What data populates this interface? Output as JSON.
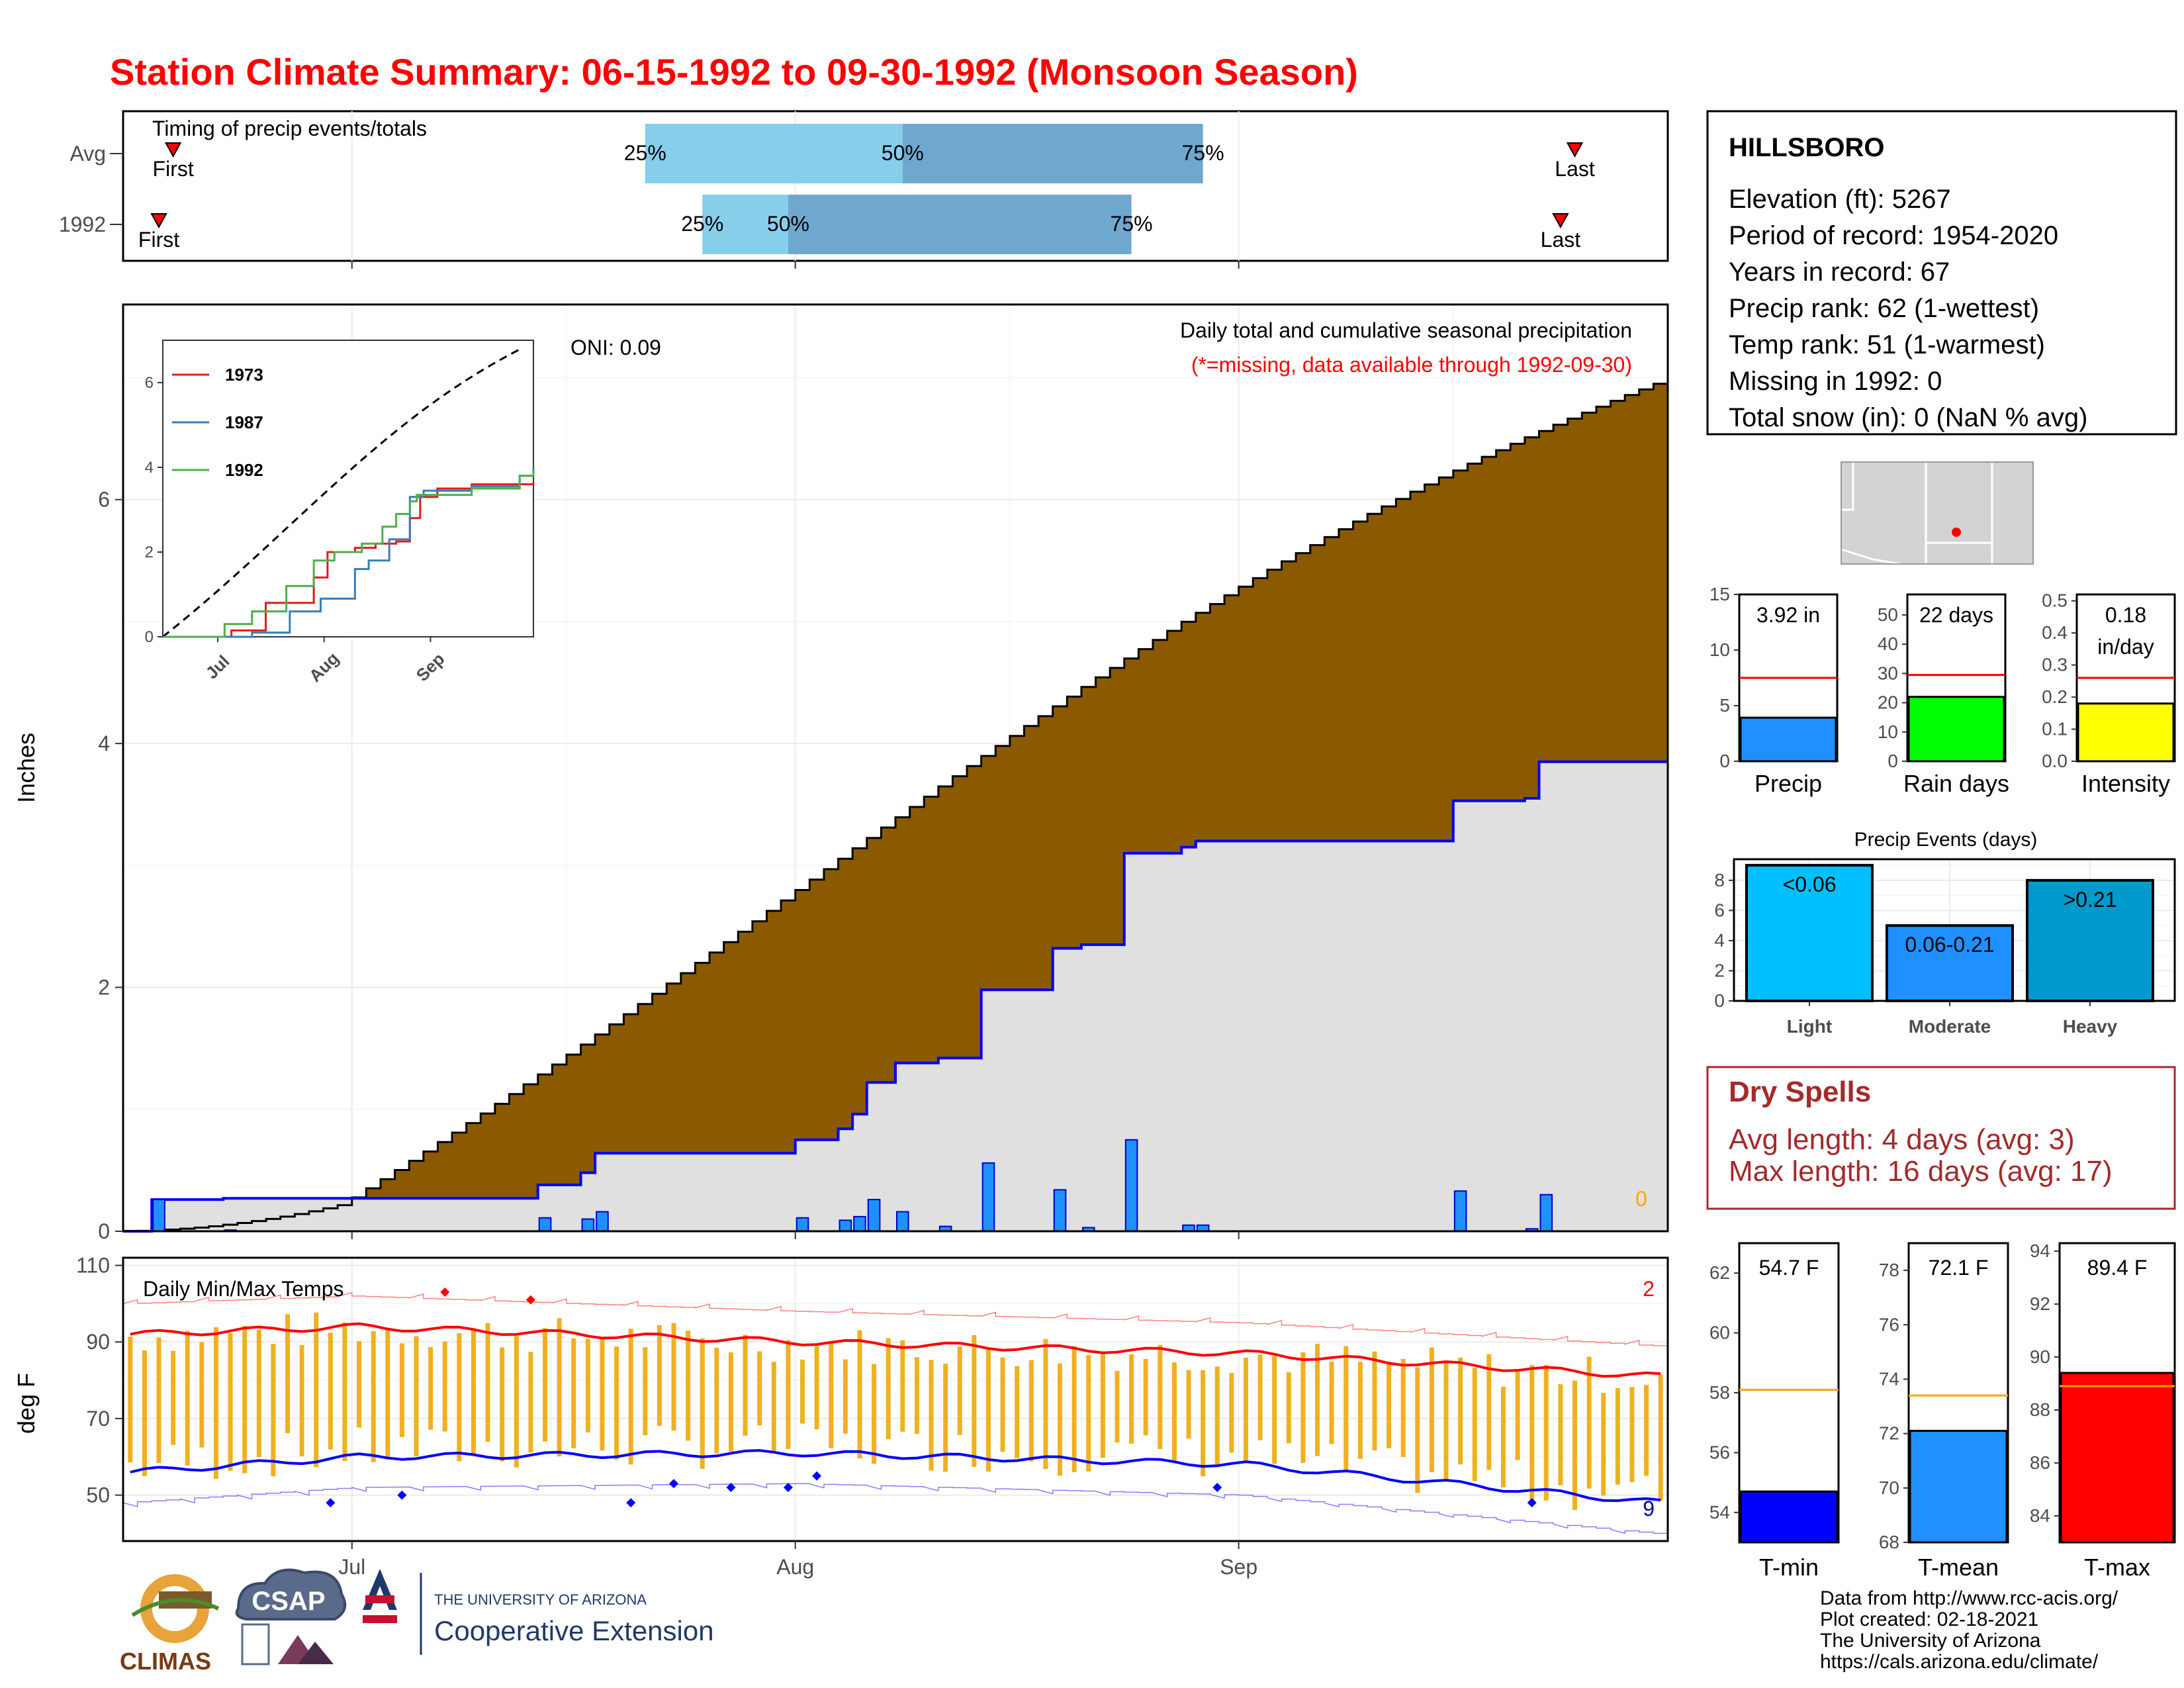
{
  "title": "Station Climate Summary: 06-15-1992 to 09-30-1992 (Monsoon Season)",
  "timing": {
    "label": "Timing of precip events/totals",
    "rows": [
      {
        "name": "Avg",
        "first": "First",
        "last": "Last",
        "p25": "25%",
        "p50": "50%",
        "p75": "75%",
        "first_day": "06-18",
        "p25_day": "07-21",
        "p50_day": "08-08",
        "p75_day": "08-29",
        "last_day": "09-24"
      },
      {
        "name": "1992",
        "first": "First",
        "last": "Last",
        "p25": "25%",
        "p50": "50%",
        "p75": "75%",
        "first_day": "06-17",
        "p25_day": "07-25",
        "p50_day": "07-31",
        "p75_day": "08-24",
        "last_day": "09-23"
      }
    ],
    "colors": {
      "lower": "#87ceeb",
      "upper": "#6fa8cf",
      "marker": "#ff0000"
    }
  },
  "precip_panel": {
    "ylabel": "Inches",
    "oni": "ONI: 0.09",
    "caption": "Daily total and cumulative seasonal precipitation",
    "missing_note": "(*=missing, data available through 1992-09-30)",
    "missing_count": "0",
    "colors": {
      "avg_fill": "#8b5a00",
      "obs_fill": "#e0e0e0",
      "obs_line": "#0000ff",
      "daily_bar": "#1e90ff"
    }
  },
  "temp_panel": {
    "ylabel": "deg F",
    "label": "Daily Min/Max Temps",
    "count_top": "2",
    "count_bottom": "9",
    "colors": {
      "bar": "#f0b020",
      "max_avg": "#ff0000",
      "min_avg": "#0000ff"
    }
  },
  "inset": {
    "series": [
      {
        "name": "1973",
        "color": "#e41a1c"
      },
      {
        "name": "1987",
        "color": "#377eb8"
      },
      {
        "name": "1992",
        "color": "#4daf4a"
      }
    ],
    "yticks": [
      "0",
      "2",
      "4",
      "6"
    ],
    "xticks": [
      "Jul",
      "Aug",
      "Sep"
    ]
  },
  "station": {
    "name": "HILLSBORO",
    "lines": [
      "Elevation (ft): 5267",
      "Period of record: 1954-2020",
      "Years in record: 67",
      "Precip rank: 62 (1-wettest)",
      "Temp rank: 51 (1-warmest)",
      "Missing in 1992: 0",
      "Total snow (in): 0 (NaN % avg)"
    ]
  },
  "mini_bars": [
    {
      "label": "Precip",
      "value_label": "3.92 in",
      "value": 3.92,
      "avg": 7.5,
      "ymax": 15,
      "ticks": [
        "0",
        "5",
        "10",
        "15"
      ],
      "color": "#1e90ff"
    },
    {
      "label": "Rain days",
      "value_label": "22 days",
      "value": 22,
      "avg": 29.5,
      "ymax": 57,
      "ticks": [
        "0",
        "10",
        "20",
        "30",
        "40",
        "50"
      ],
      "color": "#00ff00"
    },
    {
      "label": "Intensity",
      "value_label": "0.18 in/day",
      "value_line1": "0.18",
      "value_line2": "in/day",
      "value": 0.18,
      "avg": 0.26,
      "ymax": 0.52,
      "ticks": [
        "0.0",
        "0.1",
        "0.2",
        "0.3",
        "0.4",
        "0.5"
      ],
      "color": "#ffff00"
    }
  ],
  "events": {
    "title": "Precip Events (days)",
    "ticks": [
      "0",
      "2",
      "4",
      "6",
      "8"
    ],
    "bars": [
      {
        "category": "Light",
        "label": "<0.06",
        "value": 9,
        "color": "#00bfff"
      },
      {
        "category": "Moderate",
        "label": "0.06-0.21",
        "value": 5,
        "color": "#1e90ff"
      },
      {
        "category": "Heavy",
        "label": ">0.21",
        "value": 8,
        "color": "#0099cc"
      }
    ]
  },
  "dry_spells": {
    "title": "Dry Spells",
    "avg": "Avg length: 4 days (avg: 3)",
    "max": "Max length: 16 days (avg: 17)"
  },
  "temp_bars": [
    {
      "label": "T-min",
      "value_label": "54.7 F",
      "value": 54.7,
      "avg": 58.1,
      "ymin": 53,
      "ymax": 63,
      "ticks": [
        "54",
        "56",
        "58",
        "60",
        "62"
      ],
      "color": "#0000ff"
    },
    {
      "label": "T-mean",
      "value_label": "72.1 F",
      "value": 72.1,
      "avg": 73.4,
      "ymin": 68,
      "ymax": 79,
      "ticks": [
        "68",
        "70",
        "72",
        "74",
        "76",
        "78"
      ],
      "color": "#1e90ff"
    },
    {
      "label": "T-max",
      "value_label": "89.4 F",
      "value": 89.4,
      "avg": 88.9,
      "ymin": 83,
      "ymax": 94.3,
      "ticks": [
        "84",
        "86",
        "88",
        "90",
        "92",
        "94"
      ],
      "color": "#ff0000"
    }
  ],
  "footer": {
    "lines": [
      "Data from http://www.rcc-acis.org/",
      "Plot created: 02-18-2021",
      "The University of Arizona",
      "https://cals.arizona.edu/climate/"
    ],
    "logo_climas": "CLIMAS",
    "logo_csap": "CSAP",
    "ua_line1": "THE UNIVERSITY OF ARIZONA",
    "ua_line2": "Cooperative Extension"
  },
  "chart_data": {
    "type": "area",
    "x_range": [
      "06-15",
      "09-30"
    ],
    "xticks": [
      "Jul",
      "Aug",
      "Sep"
    ],
    "precip": {
      "ylim": [
        0,
        7.6
      ],
      "yticks": [
        "0",
        "2",
        "4",
        "6"
      ],
      "avg_cumulative_end": 6.95,
      "observed_cumulative": [
        {
          "day": 12,
          "cum": 0.26
        },
        {
          "day": 23,
          "cum": 0.27
        },
        {
          "day": 42,
          "cum": 0.38
        },
        {
          "day": 45,
          "cum": 0.48
        },
        {
          "day": 48,
          "cum": 0.64
        },
        {
          "day": 66,
          "cum": 0.75
        },
        {
          "day": 75,
          "cum": 0.84
        },
        {
          "day": 76,
          "cum": 0.96
        },
        {
          "day": 77,
          "cum": 1.22
        },
        {
          "day": 78,
          "cum": 1.38
        },
        {
          "day": 86,
          "cum": 1.42
        },
        {
          "day": 93,
          "cum": 1.98
        },
        {
          "day": 120,
          "cum": 2.32
        },
        {
          "day": 141,
          "cum": 2.35
        },
        {
          "day": 142,
          "cum": 3.1
        },
        {
          "day": 151,
          "cum": 3.17
        },
        {
          "day": 152,
          "cum": 3.22
        },
        {
          "day": 216,
          "cum": 3.55
        },
        {
          "day": 218,
          "cum": 3.57
        },
        {
          "day": 223,
          "cum": 3.6
        },
        {
          "day": 225,
          "cum": 3.9
        }
      ],
      "daily": [
        {
          "date": "06-17",
          "value": 0.26
        },
        {
          "date": "06-22",
          "value": 0.01
        },
        {
          "date": "07-14",
          "value": 0.11
        },
        {
          "date": "07-17",
          "value": 0.1
        },
        {
          "date": "07-18",
          "value": 0.16
        },
        {
          "date": "08-01",
          "value": 0.11
        },
        {
          "date": "08-04",
          "value": 0.09
        },
        {
          "date": "08-05",
          "value": 0.12
        },
        {
          "date": "08-06",
          "value": 0.26
        },
        {
          "date": "08-08",
          "value": 0.16
        },
        {
          "date": "08-11",
          "value": 0.04
        },
        {
          "date": "08-14",
          "value": 0.56
        },
        {
          "date": "08-19",
          "value": 0.34
        },
        {
          "date": "08-21",
          "value": 0.03
        },
        {
          "date": "08-24",
          "value": 0.75
        },
        {
          "date": "08-28",
          "value": 0.05
        },
        {
          "date": "08-29",
          "value": 0.05
        },
        {
          "date": "09-16",
          "value": 0.33
        },
        {
          "date": "09-21",
          "value": 0.02
        },
        {
          "date": "09-22",
          "value": 0.3
        }
      ]
    },
    "temps": {
      "ylim": [
        38,
        112
      ],
      "yticks": [
        "50",
        "70",
        "90",
        "110"
      ],
      "avg_max": {
        "start": 92,
        "jul": 94,
        "aug": 90,
        "sep": 87,
        "end": 81
      },
      "avg_min": {
        "start": 56,
        "jul": 60,
        "aug": 61,
        "sep": 58,
        "end": 48
      }
    }
  }
}
